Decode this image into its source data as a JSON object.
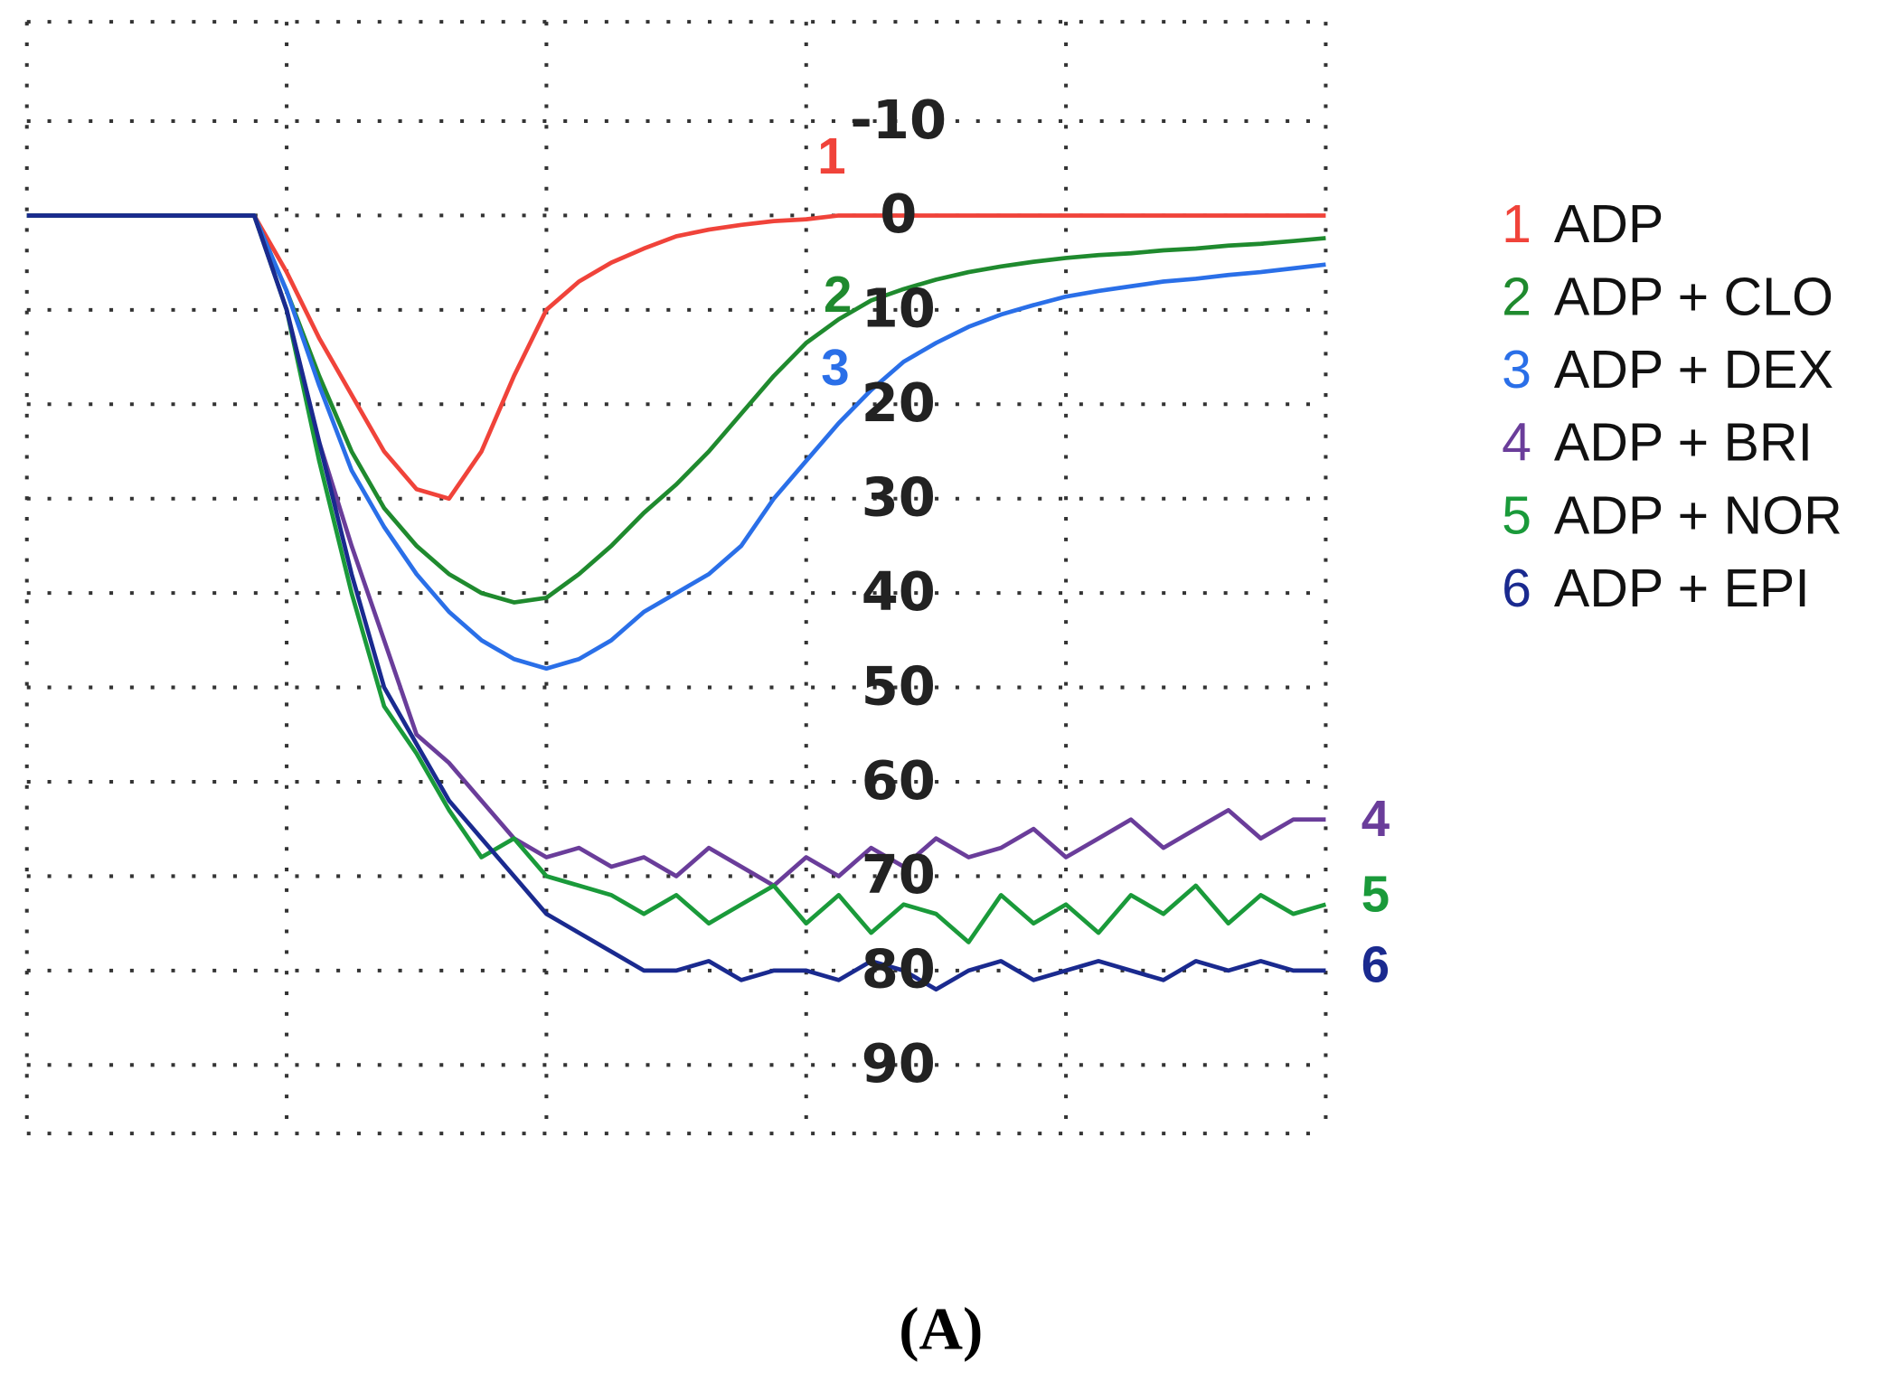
{
  "chart_data": {
    "type": "line",
    "caption": "(A)",
    "x": [
      0,
      0.125,
      0.25,
      0.375,
      0.5,
      0.625,
      0.75,
      0.875,
      1,
      1.125,
      1.25,
      1.375,
      1.5,
      1.625,
      1.75,
      1.875,
      2,
      2.125,
      2.25,
      2.375,
      2.5,
      2.625,
      2.75,
      2.875,
      3,
      3.125,
      3.25,
      3.375,
      3.5,
      3.625,
      3.75,
      3.875,
      4,
      4.125,
      4.25,
      4.375,
      4.5,
      4.625,
      4.75,
      4.875,
      5
    ],
    "xlim": [
      0,
      5
    ],
    "xticks": [
      0,
      1,
      2,
      3,
      4,
      5
    ],
    "ylim": [
      -20,
      97
    ],
    "y_reversed": true,
    "yticks": [
      -10,
      0,
      10,
      20,
      30,
      40,
      50,
      60,
      70,
      80,
      90
    ],
    "grid": true,
    "series": [
      {
        "label": "1",
        "name": "ADP",
        "color": "#f0433a",
        "values": [
          0,
          0,
          0,
          0,
          0,
          0,
          0,
          0,
          6,
          13,
          19,
          25,
          29,
          30,
          25,
          17,
          10,
          7,
          5,
          3.5,
          2.2,
          1.5,
          1,
          0.6,
          0.4,
          0,
          0,
          0,
          0,
          0,
          0,
          0,
          0,
          0,
          0,
          0,
          0,
          0,
          0,
          0,
          0
        ]
      },
      {
        "label": "2",
        "name": "ADP + CLO",
        "color": "#1f8a2e",
        "values": [
          0,
          0,
          0,
          0,
          0,
          0,
          0,
          0,
          8,
          17,
          25,
          31,
          35,
          38,
          40,
          41,
          40.5,
          38,
          35,
          31.5,
          28.5,
          25,
          21,
          17,
          13.5,
          11,
          9,
          7.8,
          6.8,
          6,
          5.4,
          4.9,
          4.5,
          4.2,
          4,
          3.7,
          3.5,
          3.2,
          3,
          2.7,
          2.4
        ]
      },
      {
        "label": "3",
        "name": "ADP + DEX",
        "color": "#2a6fe8",
        "values": [
          0,
          0,
          0,
          0,
          0,
          0,
          0,
          0,
          8,
          18,
          27,
          33,
          38,
          42,
          45,
          47,
          48,
          47,
          45,
          42,
          40,
          38,
          35,
          30,
          26,
          22,
          18.5,
          15.5,
          13.5,
          11.8,
          10.5,
          9.5,
          8.6,
          8,
          7.5,
          7,
          6.7,
          6.3,
          6,
          5.6,
          5.2
        ]
      },
      {
        "label": "4",
        "name": "ADP + BRI",
        "color": "#6a3d9a",
        "values": [
          0,
          0,
          0,
          0,
          0,
          0,
          0,
          0,
          10,
          24,
          35,
          45,
          55,
          58,
          62,
          66,
          68,
          67,
          69,
          68,
          70,
          67,
          69,
          71,
          68,
          70,
          67,
          69,
          66,
          68,
          67,
          65,
          68,
          66,
          64,
          67,
          65,
          63,
          66,
          64,
          64
        ]
      },
      {
        "label": "5",
        "name": "ADP + NOR",
        "color": "#1a9a3a",
        "values": [
          0,
          0,
          0,
          0,
          0,
          0,
          0,
          0,
          10,
          26,
          40,
          52,
          57,
          63,
          68,
          66,
          70,
          71,
          72,
          74,
          72,
          75,
          73,
          71,
          75,
          72,
          76,
          73,
          74,
          77,
          72,
          75,
          73,
          76,
          72,
          74,
          71,
          75,
          72,
          74,
          73
        ]
      },
      {
        "label": "6",
        "name": "ADP + EPI",
        "color": "#1a2a8f",
        "values": [
          0,
          0,
          0,
          0,
          0,
          0,
          0,
          0,
          10,
          24,
          38,
          50,
          56,
          62,
          66,
          70,
          74,
          76,
          78,
          80,
          80,
          79,
          81,
          80,
          80,
          81,
          79,
          80,
          82,
          80,
          79,
          81,
          80,
          79,
          80,
          81,
          79,
          80,
          79,
          80,
          80
        ]
      }
    ]
  }
}
